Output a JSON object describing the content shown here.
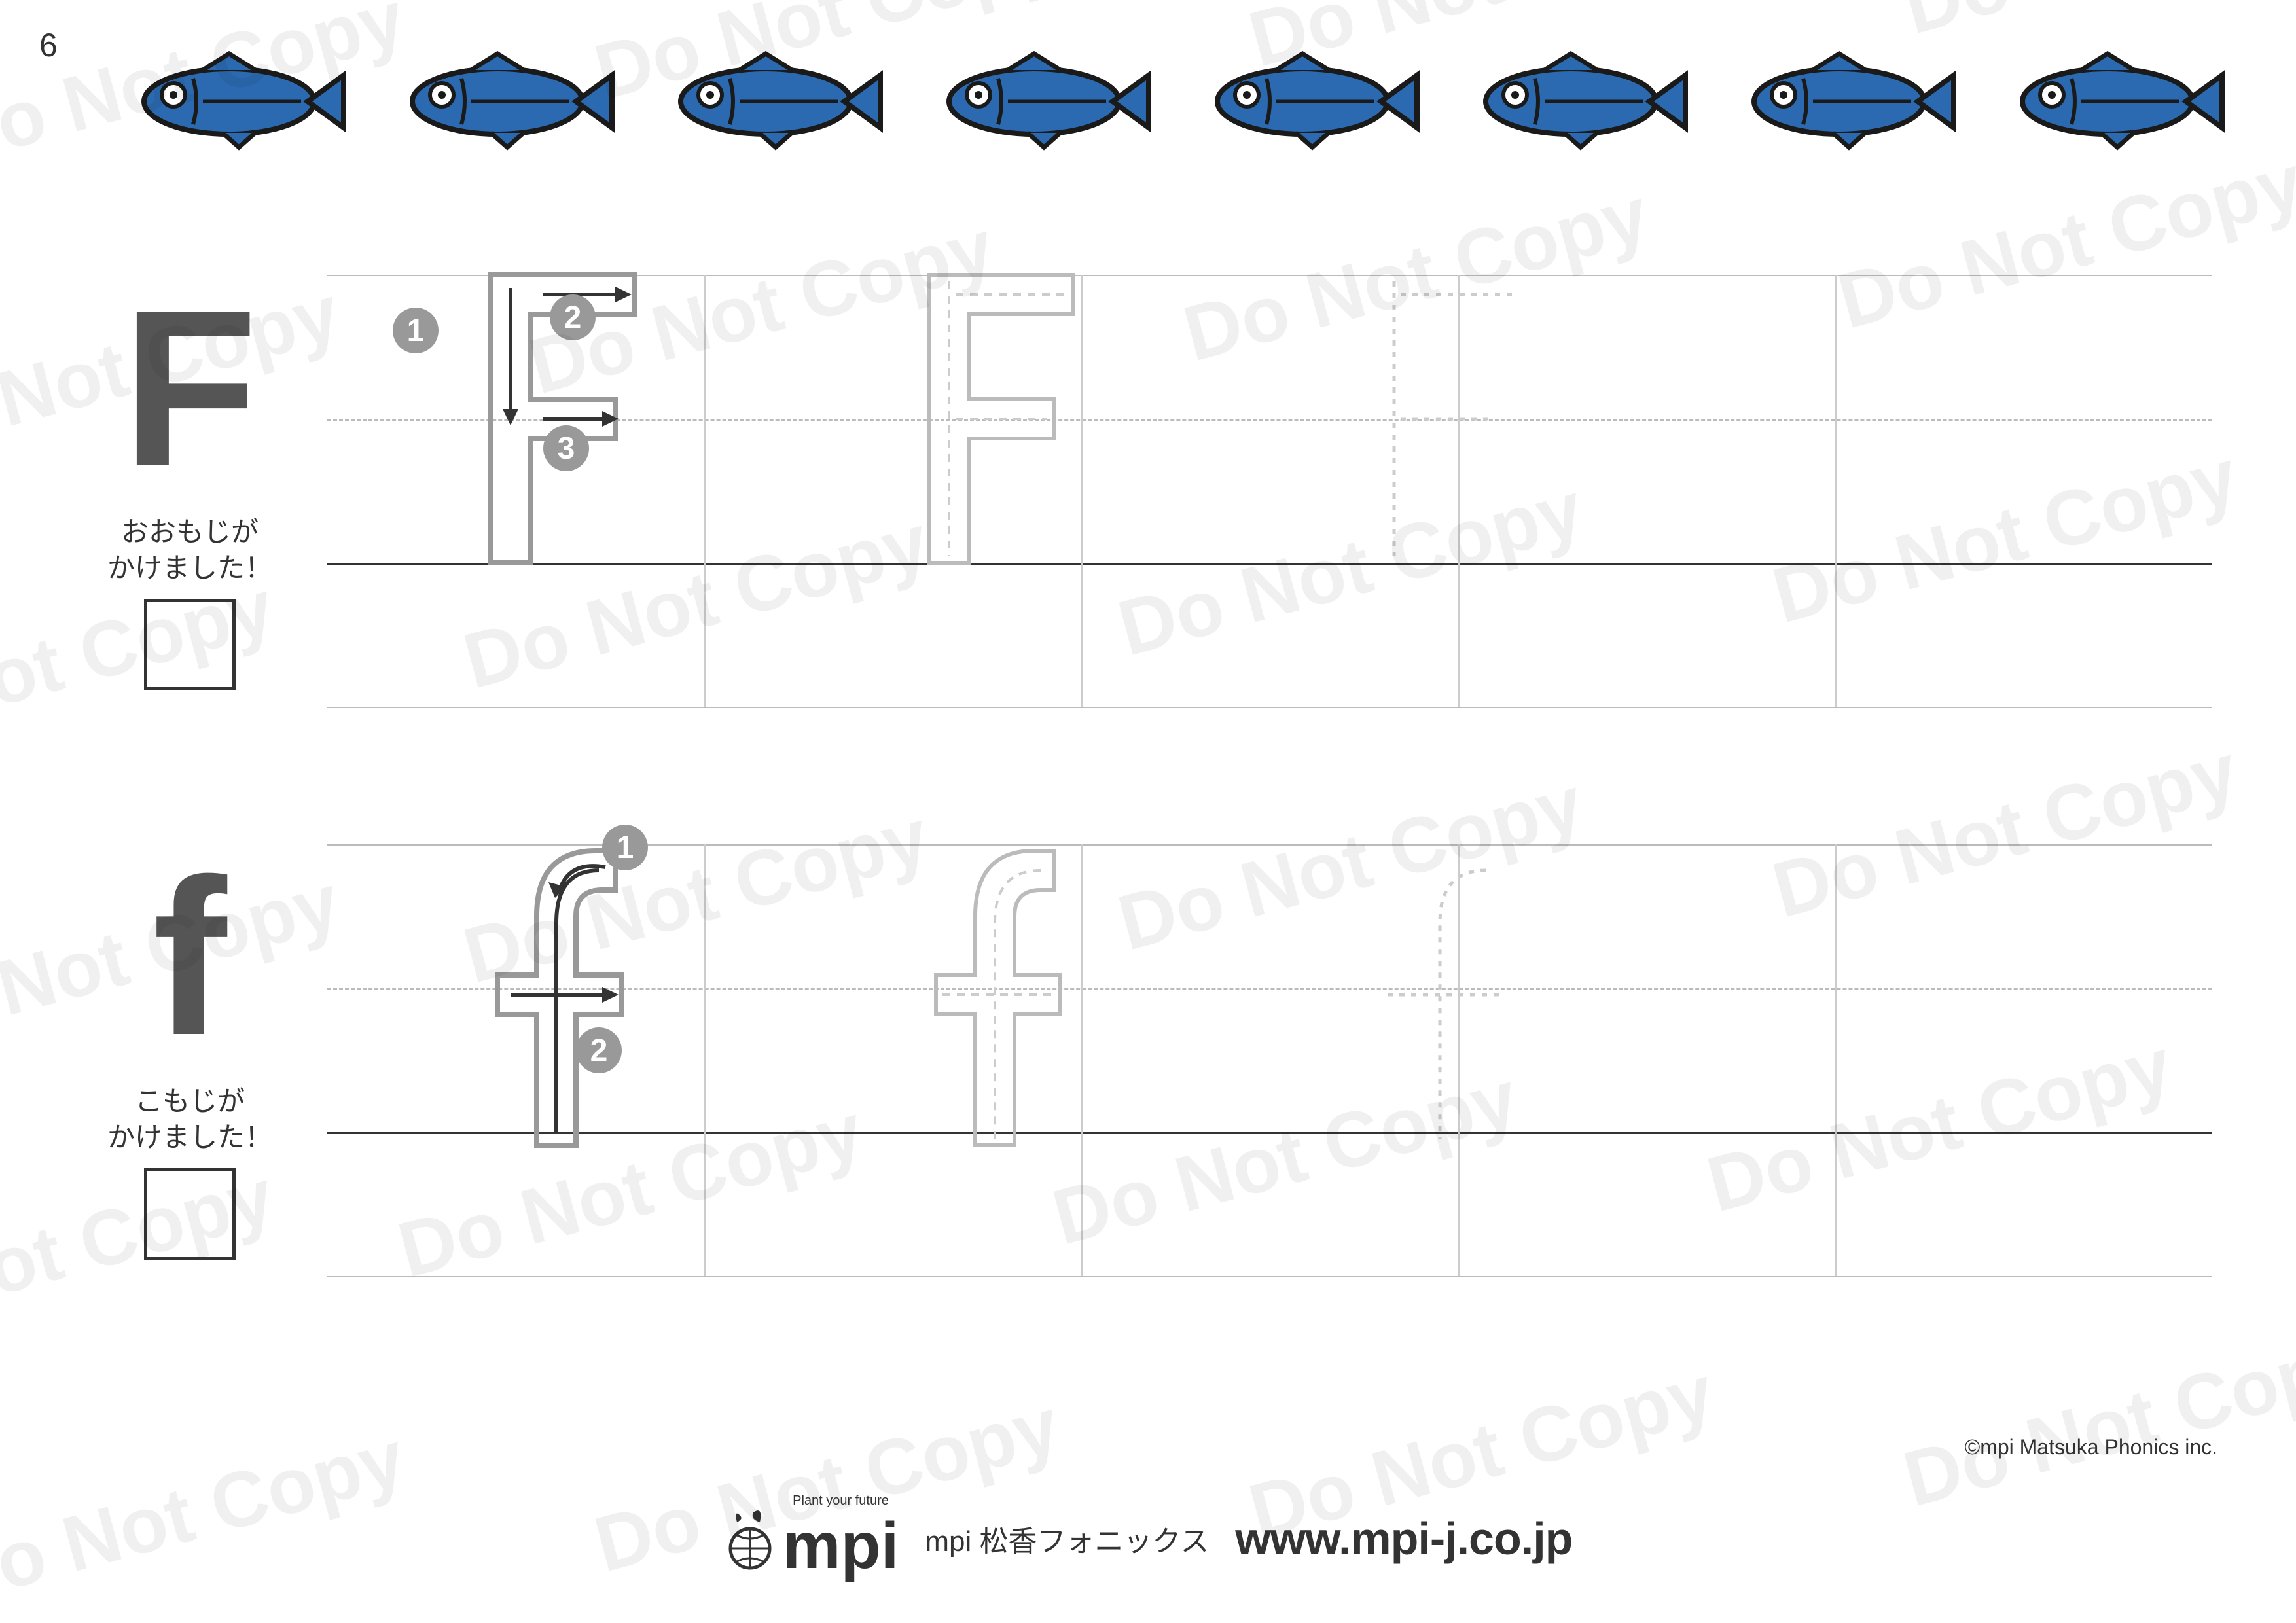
{
  "page_number": "6",
  "watermark_text": "Do Not Copy",
  "watermark_color": "rgba(0,0,0,0.06)",
  "fish": {
    "count": 8,
    "body_color": "#2b6ab0",
    "outline_color": "#1a1a1a",
    "eye_color": "#ffffff"
  },
  "upper": {
    "letter": "F",
    "caption_line1": "おおもじが",
    "caption_line2": "かけました！",
    "strokes": [
      "1",
      "2",
      "3"
    ]
  },
  "lower": {
    "letter": "f",
    "caption_line1": "こもじが",
    "caption_line2": "かけました！",
    "strokes": [
      "1",
      "2"
    ]
  },
  "guide_colors": {
    "solid_outline": "#999999",
    "dashed_outline": "#bbbbbb",
    "faint_dotted": "#cccccc",
    "arrow": "#333333",
    "number_bg": "#999999"
  },
  "grid": {
    "cell_count": 5,
    "line_color": "#bbbbbb",
    "baseline_color": "#333333"
  },
  "footer": {
    "logo_tagline": "Plant your future",
    "logo_text": "mpi",
    "subtitle": "mpi 松香フォニックス",
    "url": "www.mpi-j.co.jp",
    "copyright": "©mpi Matsuka Phonics inc."
  }
}
